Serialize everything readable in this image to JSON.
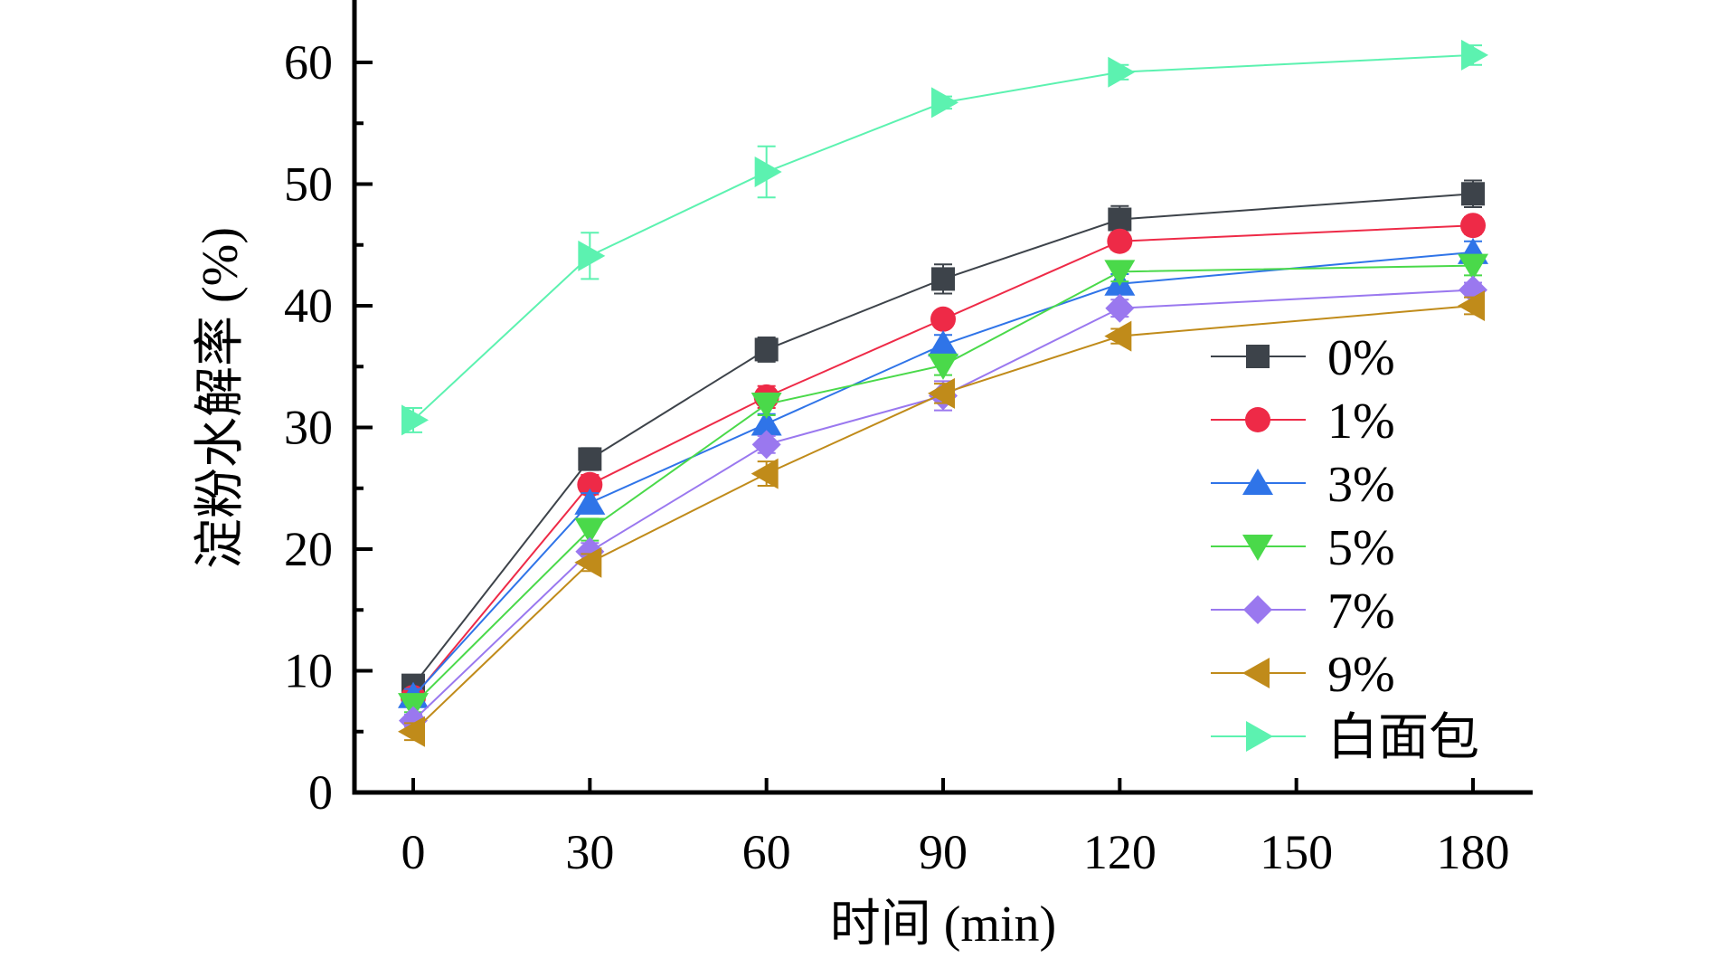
{
  "chart_data": {
    "type": "line",
    "title": "",
    "xlabel": "时间 (min)",
    "ylabel": "淀粉水解率 (%)",
    "xlim": [
      -10,
      190
    ],
    "ylim": [
      0,
      65
    ],
    "x_ticks": [
      0,
      30,
      60,
      90,
      120,
      150,
      180
    ],
    "x_tick_labels": [
      "0",
      "30",
      "60",
      "90",
      "120",
      "150",
      "180"
    ],
    "y_ticks": [
      0,
      10,
      20,
      30,
      40,
      50,
      60
    ],
    "y_tick_labels": [
      "0",
      "10",
      "20",
      "30",
      "40",
      "50",
      "60"
    ],
    "grid": false,
    "legend_position": "right-middle",
    "x": [
      0,
      30,
      60,
      90,
      120,
      180
    ],
    "series": [
      {
        "name": "0%",
        "color": "#3d434a",
        "marker": "square",
        "values": [
          8.8,
          27.4,
          36.4,
          42.2,
          47.1,
          49.2
        ],
        "errors": [
          0.8,
          0.9,
          1.0,
          1.2,
          1.1,
          1.1
        ]
      },
      {
        "name": "1%",
        "color": "#ee2a47",
        "marker": "circle",
        "values": [
          7.8,
          25.3,
          32.5,
          38.9,
          45.3,
          46.6
        ],
        "errors": [
          0.6,
          0.8,
          0.9,
          0.6,
          0.7,
          0.7
        ]
      },
      {
        "name": "3%",
        "color": "#2f74e8",
        "marker": "triangle-up",
        "values": [
          7.9,
          23.8,
          30.3,
          36.8,
          41.8,
          44.4
        ],
        "errors": [
          0.6,
          0.8,
          0.8,
          0.8,
          0.8,
          0.9
        ]
      },
      {
        "name": "5%",
        "color": "#4ad94a",
        "marker": "triangle-down",
        "values": [
          7.2,
          21.6,
          31.9,
          35.1,
          42.8,
          43.3
        ],
        "errors": [
          0.6,
          0.9,
          0.9,
          0.8,
          0.8,
          0.8
        ]
      },
      {
        "name": "7%",
        "color": "#9a78ef",
        "marker": "diamond",
        "values": [
          5.9,
          19.8,
          28.6,
          32.6,
          39.8,
          41.3
        ],
        "errors": [
          0.5,
          0.7,
          0.7,
          1.2,
          0.7,
          0.6
        ]
      },
      {
        "name": "9%",
        "color": "#c08b1a",
        "marker": "triangle-left",
        "values": [
          5.0,
          18.9,
          26.2,
          32.8,
          37.5,
          40.0
        ],
        "errors": [
          0.7,
          0.7,
          1.0,
          0.8,
          0.6,
          0.7
        ]
      },
      {
        "name": "白面包",
        "color": "#5cf2b0",
        "marker": "triangle-right",
        "values": [
          30.6,
          44.1,
          51.0,
          56.7,
          59.2,
          60.6
        ],
        "errors": [
          1.0,
          1.9,
          2.1,
          0.5,
          0.6,
          0.8
        ]
      }
    ]
  }
}
